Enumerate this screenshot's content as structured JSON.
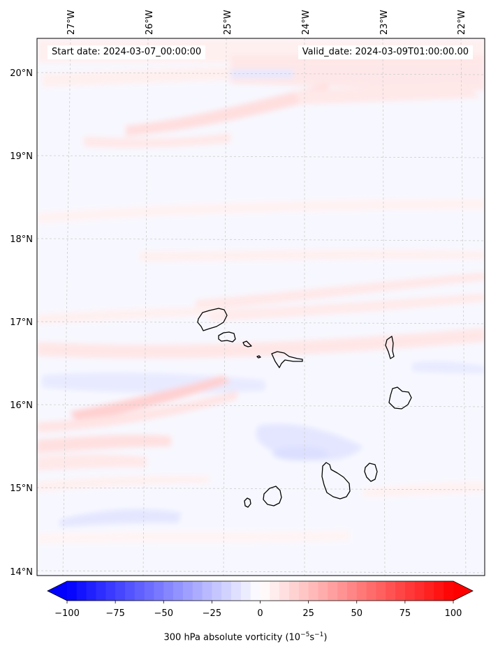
{
  "info": {
    "start_date": "Start date: 2024-03-07_00:00:00",
    "valid_date": "Valid_date: 2024-03-09T01:00:00.00"
  },
  "lon_labels": [
    "27°W",
    "26°W",
    "25°W",
    "24°W",
    "23°W",
    "22°W"
  ],
  "lat_labels": [
    "20°N",
    "19°N",
    "18°N",
    "17°N",
    "16°N",
    "15°N",
    "14°N"
  ],
  "colorbar": {
    "ticks": [
      "−100",
      "−75",
      "−50",
      "−25",
      "0",
      "25",
      "50",
      "75",
      "100"
    ],
    "label_main": "300 hPa absolute vorticity (10",
    "label_exp1": "−5",
    "label_mid": "s",
    "label_exp2": "−1",
    "label_end": ")",
    "min": -100,
    "max": 100,
    "step": 5,
    "neg_color": "#0000ff",
    "pos_color": "#ff0000"
  },
  "colors": {
    "positive_shade": "#ff8080",
    "negative_shade": "#8080ff",
    "coast": "#000000",
    "grid": "#cccccc"
  },
  "islands": [
    "Santo Antão",
    "São Vicente",
    "Santa Luzia",
    "Ilhéu Raso",
    "São Nicolau",
    "Sal",
    "Boa Vista",
    "Maio",
    "Santiago",
    "Fogo",
    "Brava"
  ]
}
